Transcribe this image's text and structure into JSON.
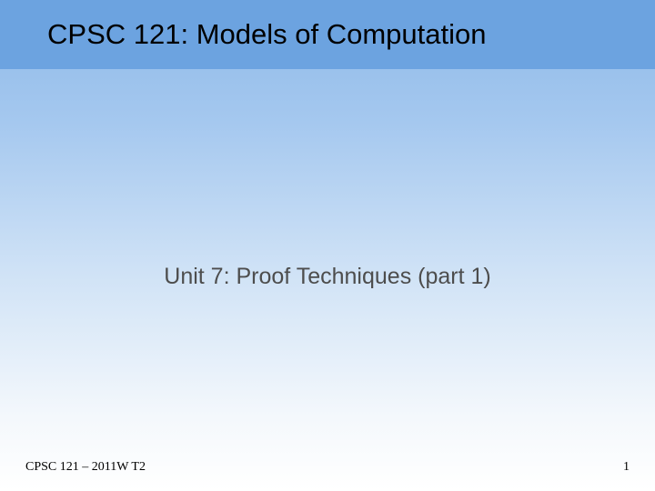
{
  "slide": {
    "header": {
      "title": "CPSC 121: Models of Computation",
      "background_color": "#6ca3e0",
      "text_color": "#000000",
      "font_size": 31
    },
    "body": {
      "subtitle": "Unit 7: Proof Techniques (part 1)",
      "subtitle_color": "#4d4d4d",
      "subtitle_font_size": 25,
      "gradient_top": "#8db9e8",
      "gradient_bottom": "#ffffff"
    },
    "footer": {
      "left_text": "CPSC 121 – 2011W T2",
      "right_text": "1",
      "font_size": 14,
      "text_color": "#000000"
    }
  }
}
